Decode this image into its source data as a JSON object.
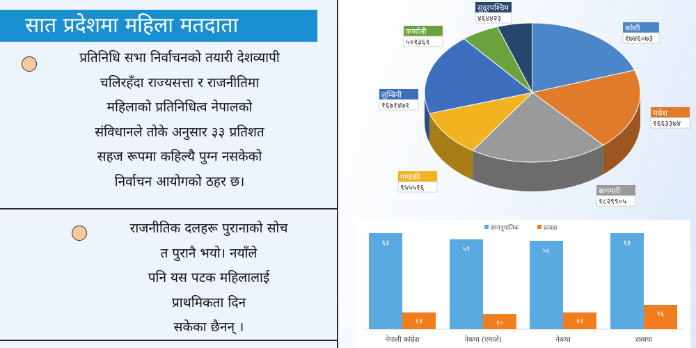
{
  "title": "सात प्रदेशमा महिला मतदाता",
  "paragraph1": {
    "lines": [
      "प्रतिनिधि सभा निर्वाचनको तयारी देशव्यापी",
      "चलिरहँदा राज्यसत्ता र राजनीतिमा",
      "महिलाको प्रतिनिधित्व नेपालको",
      "संविधानले तोके अनुसार ३३ प्रतिशत",
      "सहज रूपमा कहिल्यै पुग्न नसकेको",
      "निर्वाचन आयोगको ठहर छ।"
    ]
  },
  "paragraph2": {
    "lines": [
      "राजनीतिक दलहरू पुरानाको सोच",
      "त पुरानै भयो। नयाँले",
      "पनि यस पटक महिलालाई",
      "प्राथमिकता दिन",
      "सकेका छैनन् ।"
    ]
  },
  "colors": {
    "title_bg": "#1a8fd0",
    "bullet": "#f7c99b",
    "koshi": "#4a86c8",
    "madhesh": "#e07b2c",
    "bagmati": "#9a9a9a",
    "gandaki": "#f2b320",
    "lumbini": "#3e6fbe",
    "karnali": "#6aa33e",
    "sudurpashchim": "#26476d",
    "bar_blue": "#5aaae2",
    "bar_orange": "#f07d1e"
  },
  "chart_data": [
    {
      "type": "pie",
      "labels": [
        "कोशी",
        "मधेश",
        "बागमती",
        "गण्डकी",
        "लुम्बिनी",
        "कर्णाली",
        "सुदूरपश्चिम"
      ],
      "value_labels": [
        "१७४६०७३",
        "१६६३३७४",
        "१८२९९०५",
        "९५५५१६",
        "१६७१४७१",
        "५०१३६१",
        "४६४४२३"
      ],
      "values": [
        1746073,
        1663374,
        1829905,
        955516,
        1671471,
        501361,
        464423
      ]
    },
    {
      "type": "bar",
      "categories": [
        "नेपाली कांग्रेस",
        "नेकपा (एमाले)",
        "नेकपा",
        "रास्वपा"
      ],
      "series": [
        {
          "name": "समानुपातिक",
          "values": [
            63,
            59,
            58,
            63
          ],
          "value_labels": [
            "६३",
            "५९",
            "५८",
            "६३"
          ]
        },
        {
          "name": "प्रत्यक्ष",
          "values": [
            11,
            10,
            11,
            16
          ],
          "value_labels": [
            "११",
            "१०",
            "११",
            "१६"
          ]
        }
      ]
    }
  ]
}
